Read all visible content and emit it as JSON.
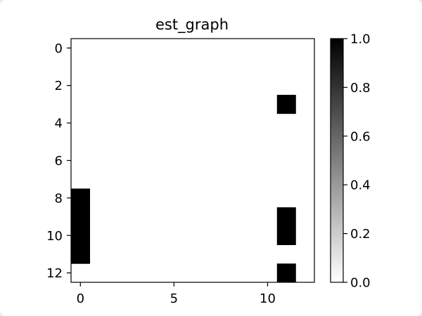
{
  "chart_data": {
    "type": "heatmap",
    "title": "est_graph",
    "xlabel": "",
    "ylabel": "",
    "n_rows": 13,
    "n_cols": 13,
    "x_ticks": [
      0,
      5,
      10
    ],
    "y_ticks": [
      0,
      2,
      4,
      6,
      8,
      10,
      12
    ],
    "cells": [
      {
        "row": 3,
        "col": 11,
        "value": 1
      },
      {
        "row": 8,
        "col": 0,
        "value": 1
      },
      {
        "row": 9,
        "col": 0,
        "value": 1
      },
      {
        "row": 9,
        "col": 11,
        "value": 1
      },
      {
        "row": 10,
        "col": 0,
        "value": 1
      },
      {
        "row": 10,
        "col": 11,
        "value": 1
      },
      {
        "row": 11,
        "col": 0,
        "value": 1
      },
      {
        "row": 12,
        "col": 11,
        "value": 1
      }
    ],
    "default_value": 0,
    "colormap": "gray_r",
    "colorbar": {
      "range": [
        0.0,
        1.0
      ],
      "ticks": [
        "0.0",
        "0.2",
        "0.4",
        "0.6",
        "0.8",
        "1.0"
      ],
      "color_low": "#ffffff",
      "color_high": "#000000"
    },
    "grid": false
  }
}
